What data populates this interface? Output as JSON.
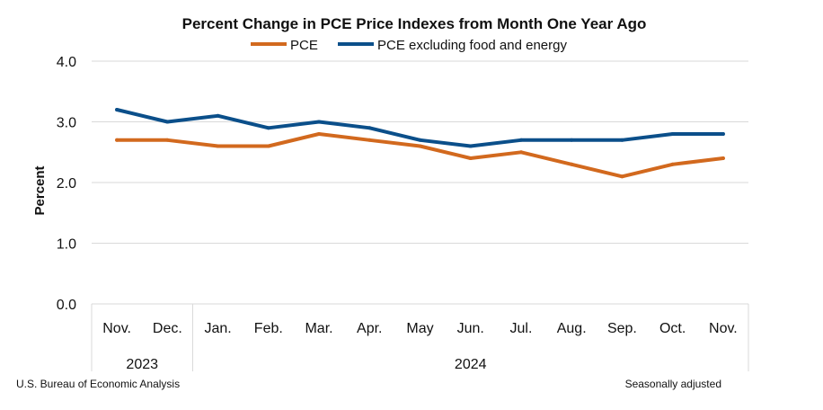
{
  "colors": {
    "pce": "#D2691E",
    "core": "#0B4F8A"
  },
  "footer": {
    "source": "U.S. Bureau of Economic Analysis",
    "note": "Seasonally adjusted"
  },
  "chart_data": {
    "type": "line",
    "title": "Percent Change in PCE Price Indexes from Month One Year Ago",
    "xlabel": "",
    "ylabel": "Percent",
    "ylim": [
      0,
      4
    ],
    "yticks": [
      "0.0",
      "1.0",
      "2.0",
      "3.0",
      "4.0"
    ],
    "grid": true,
    "legend_position": "top",
    "categories": [
      "Nov.",
      "Dec.",
      "Jan.",
      "Feb.",
      "Mar.",
      "Apr.",
      "May",
      "Jun.",
      "Jul.",
      "Aug.",
      "Sep.",
      "Oct.",
      "Nov."
    ],
    "year_groups": [
      {
        "label": "2023",
        "start": 0,
        "end": 1
      },
      {
        "label": "2024",
        "start": 2,
        "end": 12
      }
    ],
    "series": [
      {
        "name": "PCE",
        "values": [
          2.7,
          2.7,
          2.6,
          2.6,
          2.8,
          2.7,
          2.6,
          2.4,
          2.5,
          2.3,
          2.1,
          2.3,
          2.4
        ]
      },
      {
        "name": "PCE excluding food and energy",
        "values": [
          3.2,
          3.0,
          3.1,
          2.9,
          3.0,
          2.9,
          2.7,
          2.6,
          2.7,
          2.7,
          2.7,
          2.8,
          2.8
        ]
      }
    ]
  }
}
